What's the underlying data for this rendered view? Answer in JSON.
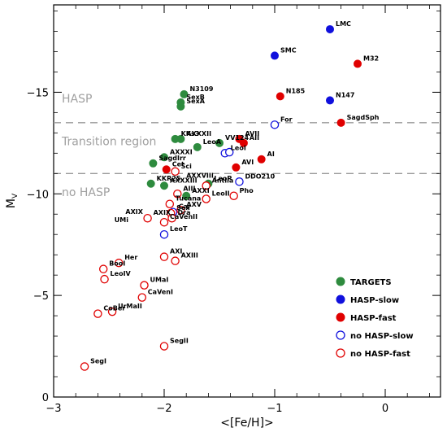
{
  "chart_data": {
    "type": "scatter",
    "xlabel": "<[Fe/H]>",
    "ylabel_main": "M",
    "ylabel_sub": "V",
    "xlim": [
      -3,
      0.5
    ],
    "ylim": [
      0,
      19.3
    ],
    "y_reversed": true,
    "xticks": [
      -3,
      -2,
      -1,
      0
    ],
    "yticks": [
      0,
      5,
      10,
      15
    ],
    "xtick_labels": [
      "−3",
      "−2",
      "−1",
      "0"
    ],
    "ytick_labels": [
      "0",
      "−5",
      "−10",
      "−15"
    ],
    "regions": [
      {
        "label": "HASP",
        "y_label": 14.7
      },
      {
        "label": "Transition region",
        "y_label": 12.6
      },
      {
        "label": "no HASP",
        "y_label": 10.1
      }
    ],
    "boundaries": [
      13.5,
      11.0
    ],
    "series": [
      {
        "name": "TARGETS",
        "style": "filled",
        "color": "#2e8b3e",
        "points": [
          {
            "label": "N3109",
            "x": -1.82,
            "y": 14.9
          },
          {
            "label": "SexB",
            "x": -1.85,
            "y": 14.5
          },
          {
            "label": "SexA",
            "x": -1.85,
            "y": 14.3
          },
          {
            "label": "KKs3",
            "x": -1.9,
            "y": 12.7
          },
          {
            "label": "AXXXII",
            "x": -1.85,
            "y": 12.7
          },
          {
            "label": "VV124",
            "x": -1.5,
            "y": 12.5
          },
          {
            "label": "LeoA",
            "x": -1.7,
            "y": 12.3
          },
          {
            "label": "AXXXI",
            "x": -2.0,
            "y": 11.8
          },
          {
            "label": "SagdIrr",
            "x": -2.1,
            "y": 11.5
          },
          {
            "label": "KKR25",
            "x": -2.12,
            "y": 10.5
          },
          {
            "label": "AXXXIII",
            "x": -2.0,
            "y": 10.4
          },
          {
            "label": "LeoP",
            "x": -1.6,
            "y": 10.5
          },
          {
            "label": "AXXI",
            "x": -1.8,
            "y": 9.9
          }
        ]
      },
      {
        "name": "HASP-slow",
        "style": "filled",
        "color": "#1010dd",
        "points": [
          {
            "label": "LMC",
            "x": -0.5,
            "y": 18.1
          },
          {
            "label": "SMC",
            "x": -1.0,
            "y": 16.8
          },
          {
            "label": "N147",
            "x": -0.5,
            "y": 14.6
          }
        ]
      },
      {
        "name": "HASP-fast",
        "style": "filled",
        "color": "#e00000",
        "points": [
          {
            "label": "M32",
            "x": -0.25,
            "y": 16.4
          },
          {
            "label": "N185",
            "x": -0.95,
            "y": 14.8
          },
          {
            "label": "SagdSph",
            "x": -0.4,
            "y": 13.5
          },
          {
            "label": "AVII",
            "x": -1.32,
            "y": 12.7
          },
          {
            "label": "AII",
            "x": -1.28,
            "y": 12.5
          },
          {
            "label": "AI",
            "x": -1.12,
            "y": 11.7
          },
          {
            "label": "Cet",
            "x": -1.98,
            "y": 11.2
          },
          {
            "label": "AVI",
            "x": -1.35,
            "y": 11.3
          }
        ]
      },
      {
        "name": "no HASP-slow",
        "style": "open",
        "color": "#1010dd",
        "points": [
          {
            "label": "For",
            "x": -1.0,
            "y": 13.4
          },
          {
            "label": "LeoI",
            "x": -1.45,
            "y": 12.0
          },
          {
            "label": "",
            "x": -1.41,
            "y": 12.05
          },
          {
            "label": "DDO210",
            "x": -1.32,
            "y": 10.6
          },
          {
            "label": "Car",
            "x": -1.92,
            "y": 9.1
          },
          {
            "label": "LeoT",
            "x": -2.0,
            "y": 8.0
          }
        ]
      },
      {
        "name": "no HASP-fast",
        "style": "open",
        "color": "#e00000",
        "points": [
          {
            "label": "Sci",
            "x": -1.9,
            "y": 11.1
          },
          {
            "label": "Antlia",
            "x": -1.62,
            "y": 10.4
          },
          {
            "label": "AIII",
            "x": -1.88,
            "y": 10.0
          },
          {
            "label": "LeoII",
            "x": -1.62,
            "y": 9.75
          },
          {
            "label": "Pho",
            "x": -1.37,
            "y": 9.9
          },
          {
            "label": "Tucana",
            "x": -1.95,
            "y": 9.5
          },
          {
            "label": "AXV",
            "x": -1.85,
            "y": 9.2
          },
          {
            "label": "Sex",
            "x": -1.94,
            "y": 9.05
          },
          {
            "label": "AXIX",
            "x": -2.15,
            "y": 8.8
          },
          {
            "label": "Dra",
            "x": -1.93,
            "y": 8.8
          },
          {
            "label": "CaVenII",
            "x": -2.0,
            "y": 8.6
          },
          {
            "label": "AXI",
            "x": -2.0,
            "y": 6.9
          },
          {
            "label": "AXIII",
            "x": -1.9,
            "y": 6.7
          },
          {
            "label": "Her",
            "x": -2.41,
            "y": 6.6
          },
          {
            "label": "BooI",
            "x": -2.55,
            "y": 6.3
          },
          {
            "label": "LeoIV",
            "x": -2.54,
            "y": 5.8
          },
          {
            "label": "UMaI",
            "x": -2.18,
            "y": 5.5
          },
          {
            "label": "CaVenI",
            "x": -2.2,
            "y": 4.9
          },
          {
            "label": "UrMaII",
            "x": -2.47,
            "y": 4.2
          },
          {
            "label": "CoBer",
            "x": -2.6,
            "y": 4.1
          },
          {
            "label": "SegII",
            "x": -2.0,
            "y": 2.5
          },
          {
            "label": "SegI",
            "x": -2.72,
            "y": 1.5
          }
        ]
      }
    ],
    "extra_labels": [
      {
        "text": "AXXVIII",
        "x": -1.8,
        "y": 10.8
      },
      {
        "text": "UMi",
        "x": -2.45,
        "y": 8.6
      },
      {
        "text": "AXIX",
        "x": -2.35,
        "y": 9.0
      }
    ],
    "legend": {
      "position": "bottom-right"
    },
    "colors": {
      "targets": "#2e8b3e",
      "slow": "#1010dd",
      "fast": "#e00000",
      "region_line": "#999999",
      "region_text": "#a0a0a0"
    }
  }
}
